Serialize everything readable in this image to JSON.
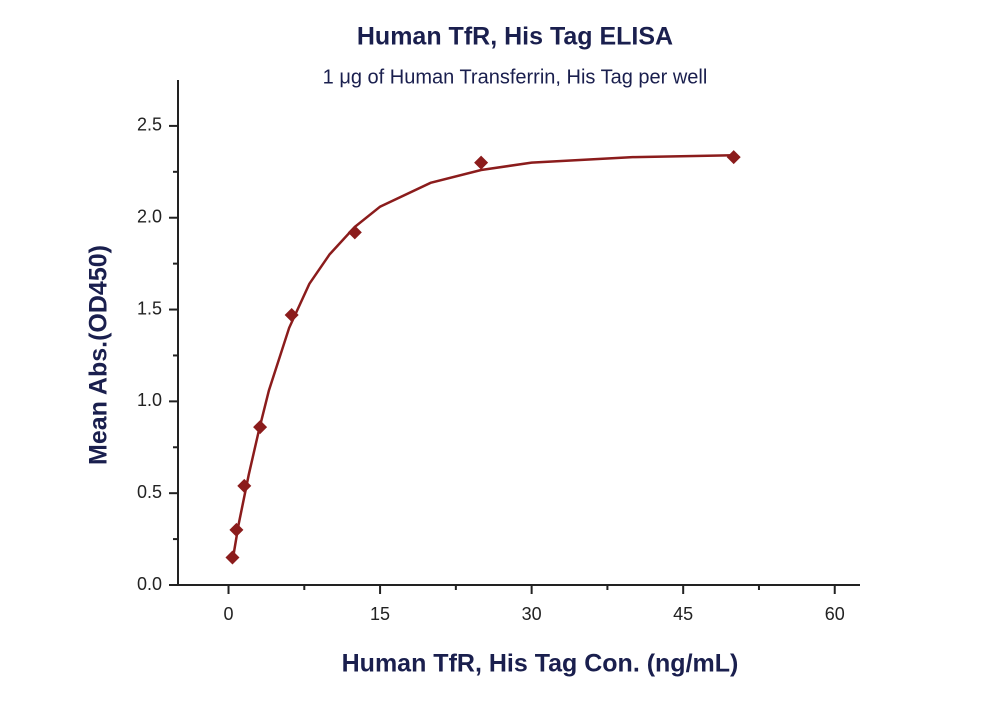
{
  "chart_data": {
    "type": "scatter",
    "title": "Human TfR, His Tag ELISA",
    "subtitle": "1 μg of Human Transferrin, His Tag per well",
    "x_label": "Human TfR, His Tag Con. (ng/mL)",
    "y_label": "Mean Abs.(OD450)",
    "xlim": [
      -5,
      62.5
    ],
    "ylim": [
      0,
      2.75
    ],
    "xticks": [
      0,
      15,
      30,
      45,
      60
    ],
    "xminorticks": [
      7.5,
      22.5,
      37.5,
      52.5
    ],
    "yticks": [
      {
        "value": 0,
        "label": "0.0"
      },
      {
        "value": 0.5,
        "label": "0.5"
      },
      {
        "value": 1,
        "label": "1.0"
      },
      {
        "value": 1.5,
        "label": "1.5"
      },
      {
        "value": 2,
        "label": "2.0"
      },
      {
        "value": 2.5,
        "label": "2.5"
      }
    ],
    "yminorticks": [
      0.25,
      0.75,
      1.25,
      1.75,
      2.25
    ],
    "series": [
      {
        "mode": "markers",
        "color": "#8b1c1c",
        "x": [
          0.39,
          0.78,
          1.56,
          3.125,
          6.25,
          12.5,
          25,
          50
        ],
        "values": [
          0.15,
          0.3,
          0.54,
          0.86,
          1.47,
          1.92,
          2.3,
          2.33
        ]
      },
      {
        "mode": "line",
        "color": "#8b1c1c",
        "x": [
          0.39,
          1,
          2,
          3,
          4,
          6,
          8,
          10,
          12.5,
          15,
          20,
          25,
          30,
          40,
          50
        ],
        "values": [
          0.13,
          0.33,
          0.6,
          0.84,
          1.06,
          1.4,
          1.64,
          1.8,
          1.95,
          2.06,
          2.19,
          2.26,
          2.3,
          2.33,
          2.34
        ]
      }
    ]
  }
}
